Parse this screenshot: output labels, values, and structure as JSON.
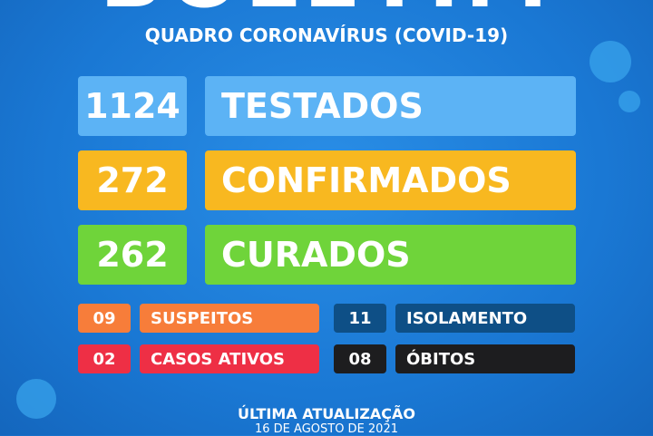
{
  "header": {
    "title": "BOLETIM",
    "subtitle": "QUADRO CORONAVÍRUS (COVID-19)"
  },
  "main": [
    {
      "value": "1124",
      "label": "TESTADOS",
      "num_color": "#5cb3f5",
      "label_color": "#5cb3f5"
    },
    {
      "value": "272",
      "label": "CONFIRMADOS",
      "num_color": "#f8b820",
      "label_color": "#f8b820"
    },
    {
      "value": "262",
      "label": "CURADOS",
      "num_color": "#6fd43a",
      "label_color": "#6fd43a"
    }
  ],
  "secondary": [
    {
      "value": "09",
      "label": "SUSPEITOS",
      "num_color": "#f77d3a",
      "label_color": "#f77d3a"
    },
    {
      "value": "11",
      "label": "ISOLAMENTO",
      "num_color": "#0e4f86",
      "label_color": "#0e4f86"
    },
    {
      "value": "02",
      "label": "CASOS ATIVOS",
      "num_color": "#ee2f45",
      "label_color": "#ee2f45"
    },
    {
      "value": "08",
      "label": "ÓBITOS",
      "num_color": "#1d1d1f",
      "label_color": "#1d1d1f"
    }
  ],
  "footer": {
    "label": "ÚLTIMA ATUALIZAÇÃO",
    "date": "16 DE AGOSTO DE 2021"
  },
  "icons": [
    "virus-icon"
  ]
}
